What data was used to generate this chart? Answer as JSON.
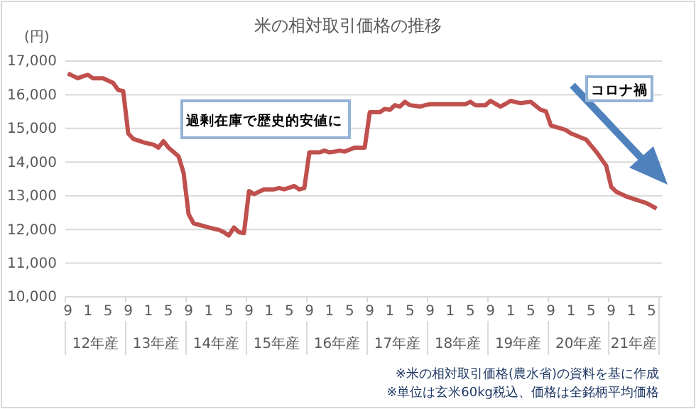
{
  "chart_data": {
    "type": "line",
    "title": "米の相対取引価格の推移",
    "ylabel": "(円)",
    "categories": [
      "9",
      null,
      null,
      null,
      "1",
      null,
      null,
      null,
      "5",
      null,
      null,
      null,
      "9",
      null,
      null,
      null,
      "1",
      null,
      null,
      null,
      "5",
      null,
      null,
      null,
      "9",
      null,
      null,
      null,
      "1",
      null,
      null,
      null,
      "5",
      null,
      null,
      null,
      "9",
      null,
      null,
      null,
      "1",
      null,
      null,
      null,
      "5",
      null,
      null,
      null,
      "9",
      null,
      null,
      null,
      "1",
      null,
      null,
      null,
      "5",
      null,
      null,
      null,
      "9",
      null,
      null,
      null,
      "1",
      null,
      null,
      null,
      "5",
      null,
      null,
      null,
      "9",
      null,
      null,
      null,
      "1",
      null,
      null,
      null,
      "5",
      null,
      null,
      null,
      "9",
      null,
      null,
      null,
      "1",
      null,
      null,
      null,
      "5",
      null,
      null,
      null,
      "9",
      null,
      null,
      null,
      "1",
      null,
      null,
      null,
      "5",
      null,
      null,
      null,
      "9",
      null,
      null,
      null,
      "1",
      null,
      null,
      null,
      "5",
      null
    ],
    "series": [
      {
        "color": "#c0504d",
        "values": [
          16630,
          16560,
          16490,
          16550,
          16590,
          16490,
          16490,
          16490,
          16420,
          16350,
          16140,
          16110,
          14850,
          14690,
          14640,
          14590,
          14550,
          14520,
          14430,
          14620,
          14430,
          14300,
          14170,
          13680,
          12450,
          12180,
          12140,
          12100,
          12060,
          12020,
          11990,
          11920,
          11820,
          12060,
          11920,
          11890,
          13140,
          13050,
          13120,
          13190,
          13190,
          13190,
          13230,
          13190,
          13240,
          13290,
          13190,
          13230,
          14290,
          14290,
          14290,
          14340,
          14290,
          14310,
          14340,
          14310,
          14370,
          14430,
          14430,
          14430,
          15480,
          15480,
          15480,
          15580,
          15550,
          15690,
          15650,
          15790,
          15690,
          15670,
          15650,
          15690,
          15720,
          15720,
          15720,
          15720,
          15720,
          15720,
          15720,
          15720,
          15790,
          15690,
          15690,
          15690,
          15820,
          15730,
          15650,
          15730,
          15820,
          15780,
          15750,
          15770,
          15790,
          15670,
          15550,
          15510,
          15090,
          15040,
          15000,
          14950,
          14850,
          14790,
          14730,
          14670,
          14490,
          14310,
          14100,
          13890,
          13260,
          13120,
          13050,
          12980,
          12930,
          12880,
          12830,
          12780,
          12700,
          12620
        ]
      }
    ],
    "ylim": [
      10000,
      17000
    ],
    "yticks": [
      {
        "value": 10000,
        "label": "10,000"
      },
      {
        "value": 11000,
        "label": "11,000"
      },
      {
        "value": 12000,
        "label": "12,000"
      },
      {
        "value": 13000,
        "label": "13,000"
      },
      {
        "value": 14000,
        "label": "14,000"
      },
      {
        "value": 15000,
        "label": "15,000"
      },
      {
        "value": 16000,
        "label": "16,000"
      },
      {
        "value": 17000,
        "label": "17,000"
      }
    ],
    "grid": "y",
    "annotations": [
      "12年産",
      "13年産",
      "14年産",
      "15年産",
      "16年産",
      "17年産",
      "18年産",
      "19年産",
      "20年産",
      "21年産",
      "過剰在庫で歴史的安値に",
      "コロナ禍",
      "※米の相対取引価格(農水省)の資料を基に作成",
      "※単位は玄米60kg税込、価格は全銘柄平均価格"
    ]
  }
}
